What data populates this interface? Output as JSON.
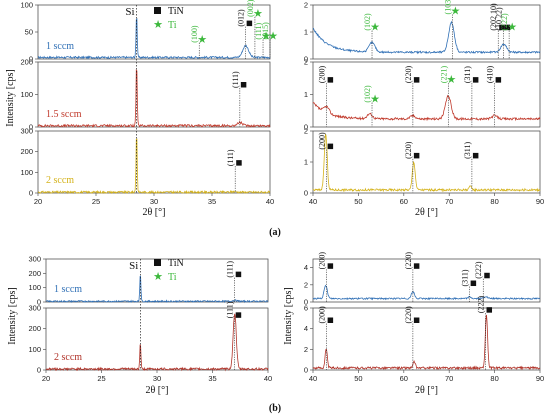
{
  "figure": {
    "part_labels": [
      "(a)",
      "(b)"
    ],
    "legend": [
      {
        "symbol": "■",
        "label": "TiN",
        "color": "#111111",
        "marker": "square"
      },
      {
        "symbol": "★",
        "label": "Ti",
        "color": "#3cb83c",
        "marker": "star"
      }
    ],
    "si_label": "Si",
    "colors": {
      "series_1sccm": "#2f6fb5",
      "series_1_5sccm": "#c0392b",
      "series_2sccm_a": "#d4b21a",
      "series_2sccm_b": "#b03228",
      "tin_label": "#111111",
      "ti_label": "#3cb83c"
    }
  },
  "chart_data": [
    {
      "type": "line",
      "group": "a",
      "xlabel": "2θ [°]",
      "ylabel": "Intensity [cps]",
      "xlim": [
        20,
        40
      ],
      "x_ticks": [
        20,
        25,
        30,
        35,
        40
      ],
      "panels": [
        {
          "series": "1 sccm",
          "color": "#2f6fb5",
          "ylim": [
            0,
            100
          ],
          "y_ticks": [
            0,
            50,
            100
          ],
          "baseline": 3,
          "si_height": 80,
          "peaks": [
            {
              "x": 37.9,
              "h": 22,
              "w": 0.35
            }
          ]
        },
        {
          "series": "1.5 sccm",
          "color": "#c0392b",
          "ylim": [
            0,
            200
          ],
          "y_ticks": [
            0,
            100,
            200
          ],
          "baseline": 4,
          "si_height": 190,
          "peaks": [
            {
              "x": 37.4,
              "h": 10,
              "w": 0.3
            }
          ]
        },
        {
          "series": "2 sccm",
          "color": "#d4b21a",
          "ylim": [
            0,
            300
          ],
          "y_ticks": [
            0,
            100,
            200,
            300
          ],
          "baseline": 4,
          "si_height": 290,
          "peaks": [
            {
              "x": 36.9,
              "h": 3,
              "w": 0.3
            }
          ]
        }
      ],
      "annotations": [
        {
          "panel": 0,
          "x": 33.9,
          "y": 30,
          "label": "(100)",
          "phase": "Ti"
        },
        {
          "panel": 0,
          "x": 37.9,
          "y": 60,
          "label": "(012)",
          "phase": "TiN"
        },
        {
          "panel": 0,
          "x": 38.7,
          "y": 78,
          "label": "(002)",
          "phase": "Ti"
        },
        {
          "panel": 0,
          "x": 39.4,
          "y": 36,
          "label": "(111)",
          "phase": "Ti"
        },
        {
          "panel": 0,
          "x": 40.0,
          "y": 36,
          "label": "(015)",
          "phase": "Ti"
        },
        {
          "panel": 1,
          "x": 37.4,
          "y": 120,
          "label": "(111)",
          "phase": "TiN"
        },
        {
          "panel": 2,
          "x": 37.0,
          "y": 130,
          "label": "(111)",
          "phase": "TiN"
        }
      ]
    },
    {
      "type": "line",
      "group": "a",
      "xlabel": "2θ [°]",
      "ylabel": "",
      "xlim": [
        40,
        90
      ],
      "x_ticks": [
        40,
        50,
        60,
        70,
        80,
        90
      ],
      "panels": [
        {
          "series": "1 sccm",
          "color": "#2f6fb5",
          "ylim": [
            0,
            2
          ],
          "y_ticks": [
            0,
            1,
            2
          ],
          "baseline": 0.25,
          "decay": {
            "amp": 0.9,
            "tau": 3
          },
          "peaks": [
            {
              "x": 53,
              "h": 0.35,
              "w": 0.9
            },
            {
              "x": 70.5,
              "h": 1.1,
              "w": 0.9
            },
            {
              "x": 82,
              "h": 0.3,
              "w": 0.9
            }
          ]
        },
        {
          "series": "1.5 sccm",
          "color": "#c0392b",
          "ylim": [
            0,
            2
          ],
          "y_ticks": [
            0,
            1,
            2
          ],
          "baseline": 0.25,
          "decay": {
            "amp": 0.5,
            "tau": 3
          },
          "peaks": [
            {
              "x": 43,
              "h": 0.2,
              "w": 0.8
            },
            {
              "x": 52.5,
              "h": 0.15,
              "w": 0.8
            },
            {
              "x": 62,
              "h": 0.1,
              "w": 0.8
            },
            {
              "x": 69.8,
              "h": 0.7,
              "w": 0.9
            },
            {
              "x": 80,
              "h": 0.1,
              "w": 0.8
            }
          ]
        },
        {
          "series": "2 sccm",
          "color": "#d4b21a",
          "ylim": [
            0,
            2
          ],
          "y_ticks": [
            0,
            1,
            2
          ],
          "baseline": 0.1,
          "peaks": [
            {
              "x": 42.8,
              "h": 1.8,
              "w": 0.45
            },
            {
              "x": 62.2,
              "h": 0.9,
              "w": 0.45
            },
            {
              "x": 74.6,
              "h": 0.1,
              "w": 0.45
            }
          ]
        }
      ],
      "annotations": [
        {
          "panel": 0,
          "x": 53.0,
          "y": 1.05,
          "label": "(102)",
          "phase": "Ti"
        },
        {
          "panel": 0,
          "x": 70.7,
          "y": 1.65,
          "label": "(103)",
          "phase": "Ti"
        },
        {
          "panel": 0,
          "x": 80.8,
          "y": 1.05,
          "label": "(202 10)",
          "phase": "TiN"
        },
        {
          "panel": 0,
          "x": 82.0,
          "y": 1.05,
          "label": "(10 22)",
          "phase": "TiN"
        },
        {
          "panel": 0,
          "x": 83.2,
          "y": 1.05,
          "label": "(222)",
          "phase": "Ti"
        },
        {
          "panel": 1,
          "x": 43.0,
          "y": 1.35,
          "label": "(200)",
          "phase": "TiN"
        },
        {
          "panel": 1,
          "x": 53.0,
          "y": 0.75,
          "label": "(102)",
          "phase": "Ti"
        },
        {
          "panel": 1,
          "x": 62.0,
          "y": 1.35,
          "label": "(220)",
          "phase": "TiN"
        },
        {
          "panel": 1,
          "x": 69.8,
          "y": 1.35,
          "label": "(221)",
          "phase": "Ti"
        },
        {
          "panel": 1,
          "x": 75.0,
          "y": 1.35,
          "label": "(311)",
          "phase": "TiN"
        },
        {
          "panel": 1,
          "x": 80.0,
          "y": 1.35,
          "label": "(410)",
          "phase": "TiN"
        },
        {
          "panel": 2,
          "x": 43.0,
          "y": 1.4,
          "label": "(200)",
          "phase": "TiN"
        },
        {
          "panel": 2,
          "x": 62.0,
          "y": 1.1,
          "label": "(220)",
          "phase": "TiN"
        },
        {
          "panel": 2,
          "x": 75.0,
          "y": 1.1,
          "label": "(311)",
          "phase": "TiN"
        }
      ]
    },
    {
      "type": "line",
      "group": "b",
      "xlabel": "2θ [°]",
      "ylabel": "Intensity [cps]",
      "xlim": [
        20,
        40
      ],
      "x_ticks": [
        20,
        25,
        30,
        35,
        40
      ],
      "panels": [
        {
          "series": "1 sccm",
          "color": "#2f6fb5",
          "ylim": [
            0,
            300
          ],
          "y_ticks": [
            0,
            100,
            200,
            300
          ],
          "baseline": 5,
          "si_height": 200,
          "peaks": [
            {
              "x": 37.0,
              "h": 6,
              "w": 0.3
            }
          ]
        },
        {
          "series": "2 sccm",
          "color": "#b03228",
          "ylim": [
            0,
            300
          ],
          "y_ticks": [
            0,
            100,
            200,
            300
          ],
          "baseline": 5,
          "si_height": 130,
          "peaks": [
            {
              "x": 37.0,
              "h": 270,
              "w": 0.2
            }
          ]
        }
      ],
      "annotations": [
        {
          "panel": 0,
          "x": 37.0,
          "y": 170,
          "label": "(111)",
          "phase": "TiN"
        },
        {
          "panel": 1,
          "x": 37.0,
          "y": 250,
          "label": "(111)",
          "phase": "TiN"
        }
      ]
    },
    {
      "type": "line",
      "group": "b",
      "xlabel": "2θ [°]",
      "ylabel": "Intensity [cps]",
      "xlim": [
        40,
        90
      ],
      "x_ticks": [
        40,
        50,
        60,
        70,
        80,
        90
      ],
      "panels": [
        {
          "series": "1 sccm",
          "color": "#2f6fb5",
          "ylim": [
            0,
            5
          ],
          "y_ticks": [
            0,
            2,
            4
          ],
          "baseline": 0.4,
          "peaks": [
            {
              "x": 42.8,
              "h": 1.5,
              "w": 0.5
            },
            {
              "x": 62.0,
              "h": 0.8,
              "w": 0.5
            },
            {
              "x": 74.5,
              "h": 0.2,
              "w": 0.5
            },
            {
              "x": 78.0,
              "h": 0.25,
              "w": 0.5
            }
          ]
        },
        {
          "series": "2 sccm",
          "color": "#b03228",
          "ylim": [
            0,
            6
          ],
          "y_ticks": [
            0,
            2,
            4,
            6
          ],
          "baseline": 0.2,
          "peaks": [
            {
              "x": 42.9,
              "h": 1.8,
              "w": 0.35
            },
            {
              "x": 62.3,
              "h": 0.6,
              "w": 0.35
            },
            {
              "x": 78.2,
              "h": 5.2,
              "w": 0.35
            }
          ]
        }
      ],
      "annotations": [
        {
          "panel": 0,
          "x": 43.0,
          "y": 3.8,
          "label": "(200)",
          "phase": "TiN"
        },
        {
          "panel": 0,
          "x": 62.0,
          "y": 3.8,
          "label": "(220)",
          "phase": "TiN"
        },
        {
          "panel": 0,
          "x": 74.5,
          "y": 1.8,
          "label": "(311)",
          "phase": "TiN"
        },
        {
          "panel": 0,
          "x": 77.5,
          "y": 2.7,
          "label": "(222)",
          "phase": "TiN"
        },
        {
          "panel": 1,
          "x": 43.0,
          "y": 4.5,
          "label": "(200)",
          "phase": "TiN"
        },
        {
          "panel": 1,
          "x": 62.0,
          "y": 4.5,
          "label": "(220)",
          "phase": "TiN"
        },
        {
          "panel": 1,
          "x": 78.0,
          "y": 5.5,
          "label": "(222)",
          "phase": "TiN"
        }
      ]
    }
  ]
}
